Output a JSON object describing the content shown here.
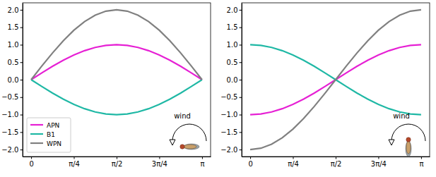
{
  "chart_data": [
    {
      "type": "line",
      "x": [
        0,
        0.196,
        0.393,
        0.589,
        0.785,
        0.982,
        1.178,
        1.374,
        1.571,
        1.767,
        1.963,
        2.16,
        2.356,
        2.553,
        2.749,
        2.945,
        3.142
      ],
      "xlim": [
        -0.157,
        3.299
      ],
      "xticks": [
        {
          "value": 0,
          "label": "0"
        },
        {
          "value": 0.785,
          "label": "π/4"
        },
        {
          "value": 1.571,
          "label": "π/2"
        },
        {
          "value": 2.356,
          "label": "3π/4"
        },
        {
          "value": 3.142,
          "label": "π"
        }
      ],
      "ylim": [
        -2.2,
        2.2
      ],
      "yticks": [
        {
          "value": -2,
          "label": "−2.0"
        },
        {
          "value": -1.5,
          "label": "−1.5"
        },
        {
          "value": -1,
          "label": "−1.0"
        },
        {
          "value": -0.5,
          "label": "−0.5"
        },
        {
          "value": 0,
          "label": "0.0"
        },
        {
          "value": 0.5,
          "label": "0.5"
        },
        {
          "value": 1,
          "label": "1.0"
        },
        {
          "value": 1.5,
          "label": "1.5"
        },
        {
          "value": 2,
          "label": "2.0"
        }
      ],
      "legend": "lower left",
      "annotations": [
        "wind"
      ],
      "series": [
        {
          "name": "APN",
          "color": "#e620d4",
          "values": [
            0,
            0.195,
            0.383,
            0.556,
            0.707,
            0.831,
            0.924,
            0.981,
            1,
            0.981,
            0.924,
            0.831,
            0.707,
            0.556,
            0.383,
            0.195,
            0
          ]
        },
        {
          "name": "B1",
          "color": "#1fb8a5",
          "values": [
            0,
            -0.195,
            -0.383,
            -0.556,
            -0.707,
            -0.831,
            -0.924,
            -0.981,
            -1,
            -0.981,
            -0.924,
            -0.831,
            -0.707,
            -0.556,
            -0.383,
            -0.195,
            0
          ]
        },
        {
          "name": "WPN",
          "color": "#808080",
          "values": [
            0,
            0.39,
            0.765,
            1.111,
            1.414,
            1.663,
            1.848,
            1.962,
            2,
            1.962,
            1.848,
            1.663,
            1.414,
            1.111,
            0.765,
            0.39,
            0
          ]
        }
      ]
    },
    {
      "type": "line",
      "x": [
        0,
        0.196,
        0.393,
        0.589,
        0.785,
        0.982,
        1.178,
        1.374,
        1.571,
        1.767,
        1.963,
        2.16,
        2.356,
        2.553,
        2.749,
        2.945,
        3.142
      ],
      "xlim": [
        -0.157,
        3.299
      ],
      "xticks": [
        {
          "value": 0,
          "label": "0"
        },
        {
          "value": 0.785,
          "label": "π/4"
        },
        {
          "value": 1.571,
          "label": "π/2"
        },
        {
          "value": 2.356,
          "label": "3π/4"
        },
        {
          "value": 3.142,
          "label": "π"
        }
      ],
      "ylim": [
        -2.2,
        2.2
      ],
      "yticks": [
        {
          "value": -2,
          "label": "−2.0"
        },
        {
          "value": -1.5,
          "label": "−1.5"
        },
        {
          "value": -1,
          "label": "−1.0"
        },
        {
          "value": -0.5,
          "label": "−0.5"
        },
        {
          "value": 0,
          "label": "0.0"
        },
        {
          "value": 0.5,
          "label": "0.5"
        },
        {
          "value": 1,
          "label": "1.0"
        },
        {
          "value": 1.5,
          "label": "1.5"
        },
        {
          "value": 2,
          "label": "2.0"
        }
      ],
      "annotations": [
        "wind"
      ],
      "series": [
        {
          "name": "APN",
          "color": "#e620d4",
          "values": [
            -1,
            -0.981,
            -0.924,
            -0.831,
            -0.707,
            -0.556,
            -0.383,
            -0.195,
            0,
            0.195,
            0.383,
            0.556,
            0.707,
            0.831,
            0.924,
            0.981,
            1
          ]
        },
        {
          "name": "B1",
          "color": "#1fb8a5",
          "values": [
            1,
            0.981,
            0.924,
            0.831,
            0.707,
            0.556,
            0.383,
            0.195,
            0,
            -0.195,
            -0.383,
            -0.556,
            -0.707,
            -0.831,
            -0.924,
            -0.981,
            -1
          ]
        },
        {
          "name": "WPN",
          "color": "#808080",
          "values": [
            -2,
            -1.962,
            -1.848,
            -1.663,
            -1.414,
            -1.111,
            -0.765,
            -0.39,
            0,
            0.39,
            0.765,
            1.111,
            1.414,
            1.663,
            1.848,
            1.962,
            2
          ]
        }
      ]
    }
  ]
}
